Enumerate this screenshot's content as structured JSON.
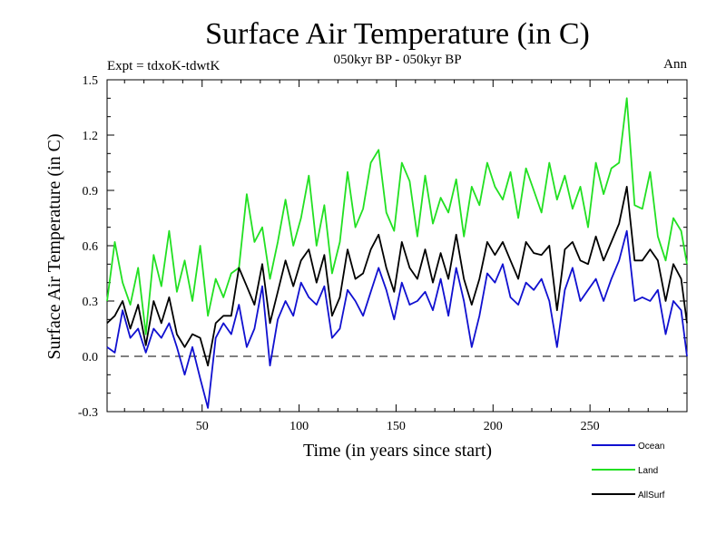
{
  "chart_data": {
    "type": "line",
    "title": "Surface Air Temperature (in C)",
    "subtitle": "050kyr BP - 050kyr BP",
    "expt_label": "Expt = tdxoK-tdwtK",
    "season_label": "Ann",
    "xlabel": "Time (in years since start)",
    "ylabel": "Surface Air Temperature (in C)",
    "xlim": [
      1,
      300
    ],
    "ylim": [
      -0.3,
      1.5
    ],
    "x_ticks": [
      50,
      100,
      150,
      200,
      250
    ],
    "x_tick_labels": [
      "50",
      "100",
      "150",
      "200",
      "250"
    ],
    "y_ticks": [
      -0.3,
      0.0,
      0.3,
      0.6,
      0.9,
      1.2,
      1.5
    ],
    "y_tick_labels": [
      "-0.3",
      "0.0",
      "0.3",
      "0.6",
      "0.9",
      "1.2",
      "1.5"
    ],
    "zero_line": 0.0,
    "legend_position": "bottom-right",
    "x": [
      1,
      5,
      9,
      13,
      17,
      21,
      25,
      29,
      33,
      37,
      41,
      45,
      49,
      53,
      57,
      61,
      65,
      69,
      73,
      77,
      81,
      85,
      89,
      93,
      97,
      101,
      105,
      109,
      113,
      117,
      121,
      125,
      129,
      133,
      137,
      141,
      145,
      149,
      153,
      157,
      161,
      165,
      169,
      173,
      177,
      181,
      185,
      189,
      193,
      197,
      201,
      205,
      209,
      213,
      217,
      221,
      225,
      229,
      233,
      237,
      241,
      245,
      249,
      253,
      257,
      261,
      265,
      269,
      273,
      277,
      281,
      285,
      289,
      293,
      297,
      300
    ],
    "series": [
      {
        "name": "Ocean",
        "color": "#1010d0",
        "values": [
          0.05,
          0.02,
          0.25,
          0.1,
          0.15,
          0.02,
          0.15,
          0.1,
          0.18,
          0.05,
          -0.1,
          0.05,
          -0.12,
          -0.28,
          0.1,
          0.18,
          0.12,
          0.28,
          0.05,
          0.15,
          0.38,
          -0.05,
          0.2,
          0.3,
          0.22,
          0.4,
          0.32,
          0.28,
          0.38,
          0.1,
          0.15,
          0.36,
          0.3,
          0.22,
          0.35,
          0.48,
          0.36,
          0.2,
          0.4,
          0.28,
          0.3,
          0.35,
          0.25,
          0.42,
          0.22,
          0.48,
          0.3,
          0.05,
          0.22,
          0.45,
          0.4,
          0.5,
          0.32,
          0.28,
          0.4,
          0.36,
          0.42,
          0.3,
          0.05,
          0.36,
          0.48,
          0.3,
          0.36,
          0.42,
          0.3,
          0.42,
          0.52,
          0.68,
          0.3,
          0.32,
          0.3,
          0.36,
          0.12,
          0.3,
          0.25,
          0.0
        ]
      },
      {
        "name": "Land",
        "color": "#22e022",
        "values": [
          0.3,
          0.62,
          0.4,
          0.28,
          0.48,
          0.12,
          0.55,
          0.38,
          0.68,
          0.35,
          0.52,
          0.3,
          0.6,
          0.22,
          0.42,
          0.32,
          0.45,
          0.48,
          0.88,
          0.62,
          0.7,
          0.42,
          0.62,
          0.85,
          0.6,
          0.75,
          0.98,
          0.6,
          0.82,
          0.45,
          0.62,
          1.0,
          0.7,
          0.8,
          1.05,
          1.12,
          0.78,
          0.68,
          1.05,
          0.95,
          0.65,
          0.98,
          0.72,
          0.86,
          0.78,
          0.96,
          0.65,
          0.92,
          0.82,
          1.05,
          0.92,
          0.85,
          1.0,
          0.75,
          1.02,
          0.9,
          0.78,
          1.05,
          0.85,
          0.98,
          0.8,
          0.92,
          0.7,
          1.05,
          0.88,
          1.02,
          1.05,
          1.4,
          0.82,
          0.8,
          1.0,
          0.65,
          0.52,
          0.75,
          0.68,
          0.5
        ]
      },
      {
        "name": "AllSurf",
        "color": "#000000",
        "values": [
          0.18,
          0.22,
          0.3,
          0.15,
          0.28,
          0.06,
          0.3,
          0.18,
          0.32,
          0.12,
          0.05,
          0.12,
          0.1,
          -0.05,
          0.18,
          0.22,
          0.22,
          0.48,
          0.38,
          0.28,
          0.5,
          0.18,
          0.35,
          0.52,
          0.38,
          0.52,
          0.58,
          0.4,
          0.55,
          0.22,
          0.32,
          0.58,
          0.42,
          0.45,
          0.58,
          0.66,
          0.48,
          0.35,
          0.62,
          0.48,
          0.42,
          0.58,
          0.4,
          0.56,
          0.42,
          0.66,
          0.42,
          0.28,
          0.42,
          0.62,
          0.55,
          0.62,
          0.52,
          0.42,
          0.62,
          0.56,
          0.55,
          0.6,
          0.25,
          0.58,
          0.62,
          0.52,
          0.5,
          0.65,
          0.52,
          0.62,
          0.72,
          0.92,
          0.52,
          0.52,
          0.58,
          0.52,
          0.3,
          0.5,
          0.42,
          0.18
        ]
      }
    ]
  }
}
